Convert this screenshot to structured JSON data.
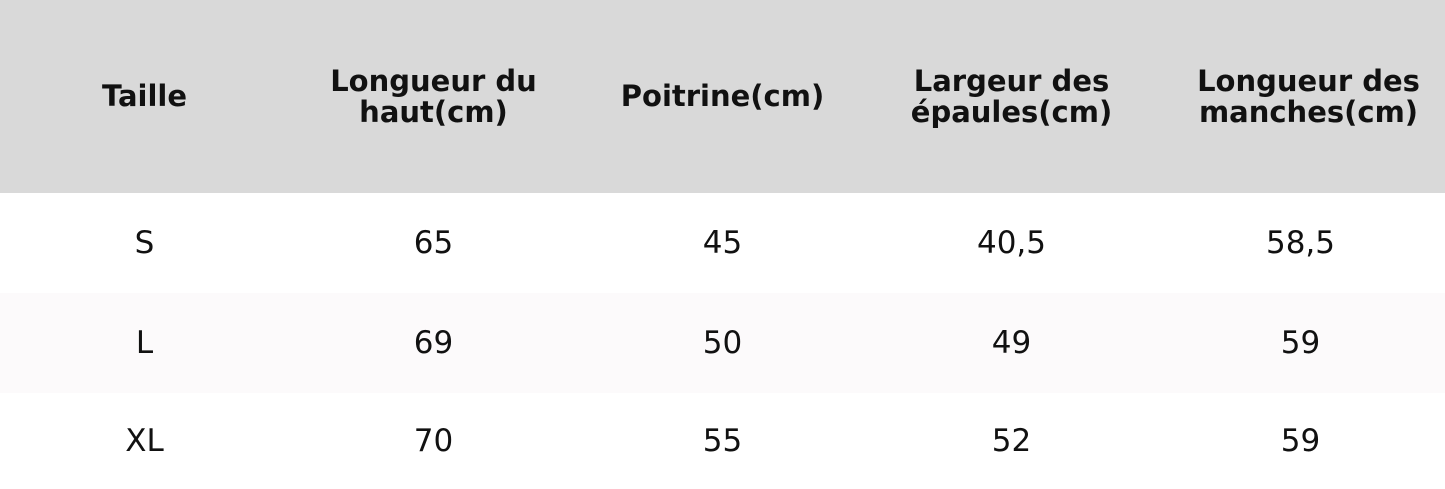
{
  "table": {
    "headers": [
      "Taille",
      "Longueur du haut(cm)",
      "Poitrine(cm)",
      "Largeur des épaules(cm)",
      "Longueur des manches(cm)"
    ],
    "rows": [
      [
        "S",
        "65",
        "45",
        "40,5",
        "58,5"
      ],
      [
        "L",
        "69",
        "50",
        "49",
        "59"
      ],
      [
        "XL",
        "70",
        "55",
        "52",
        "59"
      ]
    ]
  },
  "colors": {
    "header_bg": "#d9d9d9",
    "row_alt_bg": "#fcfafb"
  }
}
